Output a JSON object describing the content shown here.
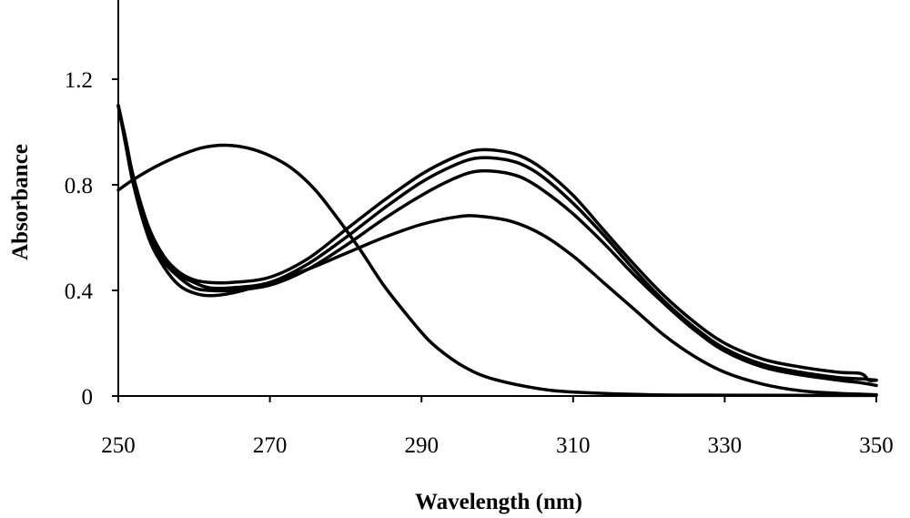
{
  "chart_data": {
    "type": "line",
    "title": "",
    "xlabel": "Wavelength (nm)",
    "ylabel": "Absorbance",
    "xlim": [
      250,
      350
    ],
    "ylim": [
      0,
      1.5
    ],
    "x_ticks": [
      250,
      270,
      290,
      310,
      330,
      350
    ],
    "x_tick_labels": [
      "250",
      "270",
      "290",
      "310",
      "330",
      "350"
    ],
    "y_ticks": [
      0,
      0.4,
      0.8,
      1.2
    ],
    "y_tick_labels": [
      "0",
      "0.4",
      "0.8",
      "1.2"
    ],
    "grid": false,
    "legend": "none",
    "line_color": "#000000",
    "series": [
      {
        "points": [
          [
            250,
            0.78
          ],
          [
            252,
            0.82
          ],
          [
            255,
            0.87
          ],
          [
            258,
            0.91
          ],
          [
            261,
            0.94
          ],
          [
            264,
            0.95
          ],
          [
            267,
            0.94
          ],
          [
            270,
            0.91
          ],
          [
            273,
            0.86
          ],
          [
            276,
            0.78
          ],
          [
            279,
            0.67
          ],
          [
            282,
            0.55
          ],
          [
            285,
            0.42
          ],
          [
            288,
            0.31
          ],
          [
            291,
            0.21
          ],
          [
            294,
            0.14
          ],
          [
            297,
            0.09
          ],
          [
            300,
            0.06
          ],
          [
            305,
            0.03
          ],
          [
            310,
            0.015
          ],
          [
            320,
            0.005
          ],
          [
            330,
            0.003
          ],
          [
            350,
            0.002
          ]
        ]
      },
      {
        "points": [
          [
            250,
            1.1
          ],
          [
            251,
            0.95
          ],
          [
            252,
            0.8
          ],
          [
            254,
            0.6
          ],
          [
            256,
            0.49
          ],
          [
            258,
            0.42
          ],
          [
            260,
            0.39
          ],
          [
            262,
            0.38
          ],
          [
            265,
            0.39
          ],
          [
            270,
            0.43
          ],
          [
            275,
            0.48
          ],
          [
            280,
            0.54
          ],
          [
            285,
            0.6
          ],
          [
            290,
            0.65
          ],
          [
            295,
            0.68
          ],
          [
            298,
            0.68
          ],
          [
            302,
            0.66
          ],
          [
            306,
            0.61
          ],
          [
            310,
            0.53
          ],
          [
            314,
            0.43
          ],
          [
            318,
            0.33
          ],
          [
            322,
            0.23
          ],
          [
            326,
            0.15
          ],
          [
            330,
            0.09
          ],
          [
            335,
            0.045
          ],
          [
            340,
            0.02
          ],
          [
            345,
            0.01
          ],
          [
            350,
            0.005
          ]
        ]
      },
      {
        "points": [
          [
            250,
            1.1
          ],
          [
            251,
            0.95
          ],
          [
            252,
            0.81
          ],
          [
            254,
            0.62
          ],
          [
            256,
            0.51
          ],
          [
            258,
            0.45
          ],
          [
            260,
            0.41
          ],
          [
            262,
            0.4
          ],
          [
            265,
            0.4
          ],
          [
            270,
            0.42
          ],
          [
            275,
            0.48
          ],
          [
            280,
            0.57
          ],
          [
            285,
            0.67
          ],
          [
            290,
            0.76
          ],
          [
            294,
            0.82
          ],
          [
            297,
            0.85
          ],
          [
            300,
            0.85
          ],
          [
            303,
            0.83
          ],
          [
            306,
            0.78
          ],
          [
            310,
            0.69
          ],
          [
            314,
            0.58
          ],
          [
            318,
            0.46
          ],
          [
            322,
            0.35
          ],
          [
            326,
            0.25
          ],
          [
            330,
            0.17
          ],
          [
            335,
            0.11
          ],
          [
            340,
            0.08
          ],
          [
            345,
            0.06
          ],
          [
            348,
            0.05
          ],
          [
            350,
            0.04
          ]
        ]
      },
      {
        "points": [
          [
            250,
            1.1
          ],
          [
            251,
            0.96
          ],
          [
            252,
            0.82
          ],
          [
            254,
            0.63
          ],
          [
            256,
            0.52
          ],
          [
            258,
            0.46
          ],
          [
            260,
            0.43
          ],
          [
            262,
            0.41
          ],
          [
            265,
            0.41
          ],
          [
            270,
            0.43
          ],
          [
            275,
            0.5
          ],
          [
            280,
            0.6
          ],
          [
            285,
            0.71
          ],
          [
            290,
            0.81
          ],
          [
            294,
            0.87
          ],
          [
            297,
            0.9
          ],
          [
            300,
            0.9
          ],
          [
            303,
            0.88
          ],
          [
            306,
            0.83
          ],
          [
            310,
            0.73
          ],
          [
            314,
            0.61
          ],
          [
            318,
            0.48
          ],
          [
            322,
            0.36
          ],
          [
            326,
            0.26
          ],
          [
            330,
            0.18
          ],
          [
            335,
            0.12
          ],
          [
            340,
            0.09
          ],
          [
            345,
            0.07
          ],
          [
            348,
            0.065
          ],
          [
            350,
            0.06
          ]
        ]
      },
      {
        "points": [
          [
            250,
            1.1
          ],
          [
            251,
            0.97
          ],
          [
            252,
            0.83
          ],
          [
            254,
            0.64
          ],
          [
            256,
            0.53
          ],
          [
            258,
            0.47
          ],
          [
            260,
            0.44
          ],
          [
            262,
            0.43
          ],
          [
            265,
            0.43
          ],
          [
            270,
            0.45
          ],
          [
            275,
            0.52
          ],
          [
            280,
            0.63
          ],
          [
            285,
            0.74
          ],
          [
            290,
            0.84
          ],
          [
            294,
            0.9
          ],
          [
            297,
            0.93
          ],
          [
            300,
            0.93
          ],
          [
            303,
            0.91
          ],
          [
            306,
            0.86
          ],
          [
            310,
            0.76
          ],
          [
            314,
            0.63
          ],
          [
            318,
            0.5
          ],
          [
            322,
            0.38
          ],
          [
            326,
            0.28
          ],
          [
            330,
            0.2
          ],
          [
            335,
            0.14
          ],
          [
            340,
            0.11
          ],
          [
            345,
            0.09
          ],
          [
            348,
            0.085
          ],
          [
            349,
            0.06
          ],
          [
            350,
            0.06
          ]
        ]
      }
    ]
  }
}
